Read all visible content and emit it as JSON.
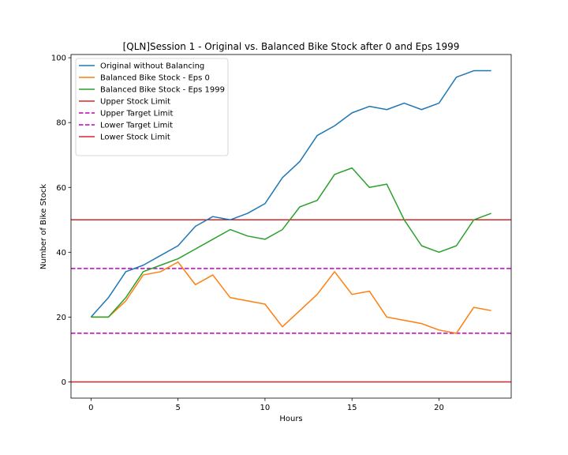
{
  "chart_data": {
    "type": "line",
    "title": "[QLN]Session 1 - Original vs. Balanced Bike Stock after 0 and Eps 1999",
    "xlabel": "Hours",
    "ylabel": "Number of Bike Stock",
    "xlim": [
      -1.15,
      24.15
    ],
    "ylim": [
      -5,
      101
    ],
    "xticks": [
      0,
      5,
      10,
      15,
      20
    ],
    "yticks": [
      0,
      20,
      40,
      60,
      80,
      100
    ],
    "legend_position": "upper-left",
    "x": [
      0,
      1,
      2,
      3,
      4,
      5,
      6,
      7,
      8,
      9,
      10,
      11,
      12,
      13,
      14,
      15,
      16,
      17,
      18,
      19,
      20,
      21,
      22,
      23
    ],
    "series": [
      {
        "name": "Original without Balancing",
        "color": "#1f77b4",
        "style": "solid",
        "values": [
          20,
          26,
          34,
          36,
          39,
          42,
          48,
          51,
          50,
          52,
          55,
          63,
          68,
          76,
          79,
          83,
          85,
          84,
          86,
          84,
          86,
          94,
          96,
          96
        ]
      },
      {
        "name": "Balanced Bike Stock - Eps 0",
        "color": "#ff7f0e",
        "style": "solid",
        "values": [
          20,
          20,
          25,
          33,
          34,
          37,
          30,
          33,
          26,
          25,
          24,
          17,
          22,
          27,
          34,
          27,
          28,
          20,
          19,
          18,
          16,
          15,
          23,
          22
        ]
      },
      {
        "name": "Balanced Bike Stock - Eps 1999",
        "color": "#2ca02c",
        "style": "solid",
        "values": [
          20,
          20,
          26,
          34,
          36,
          38,
          41,
          44,
          47,
          45,
          44,
          47,
          54,
          56,
          64,
          66,
          60,
          61,
          50,
          42,
          40,
          42,
          50,
          52
        ]
      }
    ],
    "reference_lines": [
      {
        "name": "Upper Stock Limit",
        "color": "#d62728",
        "style": "solid",
        "y": 50
      },
      {
        "name": "Upper Target Limit",
        "color": "#c000c0",
        "style": "dashed",
        "y": 35
      },
      {
        "name": "Lower Target Limit",
        "color": "#c000c0",
        "style": "dashed",
        "y": 15
      },
      {
        "name": "Lower Stock Limit",
        "color": "#d62728",
        "style": "solid",
        "y": 0
      }
    ]
  }
}
